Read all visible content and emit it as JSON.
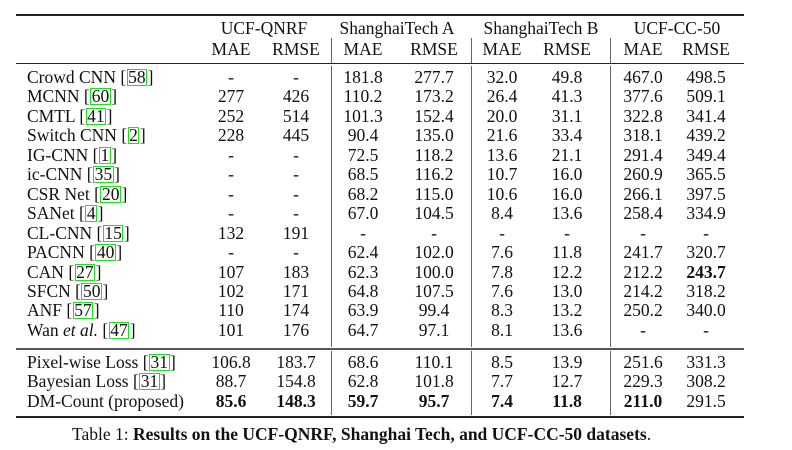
{
  "table": {
    "groups": [
      {
        "name": "UCF-QNRF",
        "cols": [
          "MAE",
          "RMSE"
        ]
      },
      {
        "name": "ShanghaiTech A",
        "cols": [
          "MAE",
          "RMSE"
        ]
      },
      {
        "name": "ShanghaiTech B",
        "cols": [
          "MAE",
          "RMSE"
        ]
      },
      {
        "name": "UCF-CC-50",
        "cols": [
          "MAE",
          "RMSE"
        ]
      }
    ],
    "rows_group1": [
      {
        "method": "Crowd CNN",
        "ref": "58",
        "vals": [
          "-",
          "-",
          "181.8",
          "277.7",
          "32.0",
          "49.8",
          "467.0",
          "498.5"
        ],
        "bold": []
      },
      {
        "method": "MCNN",
        "ref": "60",
        "vals": [
          "277",
          "426",
          "110.2",
          "173.2",
          "26.4",
          "41.3",
          "377.6",
          "509.1"
        ],
        "bold": []
      },
      {
        "method": "CMTL",
        "ref": "41",
        "vals": [
          "252",
          "514",
          "101.3",
          "152.4",
          "20.0",
          "31.1",
          "322.8",
          "341.4"
        ],
        "bold": []
      },
      {
        "method": "Switch CNN ",
        "ref": "2",
        "vals": [
          "228",
          "445",
          "90.4",
          "135.0",
          "21.6",
          "33.4",
          "318.1",
          "439.2"
        ],
        "bold": []
      },
      {
        "method": "IG-CNN",
        "ref": "1",
        "vals": [
          "-",
          "-",
          "72.5",
          "118.2",
          "13.6",
          "21.1",
          "291.4",
          "349.4"
        ],
        "bold": []
      },
      {
        "method": "ic-CNN",
        "ref": "35",
        "vals": [
          "-",
          "-",
          "68.5",
          "116.2",
          "10.7",
          "16.0",
          "260.9",
          "365.5"
        ],
        "bold": []
      },
      {
        "method": "CSR Net",
        "ref": "20",
        "vals": [
          "-",
          "-",
          "68.2",
          "115.0",
          "10.6",
          "16.0",
          "266.1",
          "397.5"
        ],
        "bold": []
      },
      {
        "method": "SANet",
        "ref": "4",
        "vals": [
          "-",
          "-",
          "67.0",
          "104.5",
          "8.4",
          "13.6",
          "258.4",
          "334.9"
        ],
        "bold": []
      },
      {
        "method": "CL-CNN",
        "ref": "15",
        "vals": [
          "132",
          "191",
          "-",
          "-",
          "-",
          "-",
          "-",
          "-"
        ],
        "bold": []
      },
      {
        "method": "PACNN ",
        "ref": "40",
        "vals": [
          "-",
          "-",
          "62.4",
          "102.0",
          "7.6",
          "11.8",
          "241.7",
          "320.7"
        ],
        "bold": []
      },
      {
        "method": "CAN ",
        "ref": "27",
        "vals": [
          "107",
          "183",
          "62.3",
          "100.0",
          "7.8",
          "12.2",
          "212.2",
          "243.7"
        ],
        "bold": [
          7
        ]
      },
      {
        "method": "SFCN ",
        "ref": "50",
        "vals": [
          "102",
          "171",
          "64.8",
          "107.5",
          "7.6",
          "13.0",
          "214.2",
          "318.2"
        ],
        "bold": []
      },
      {
        "method": "ANF",
        "ref": "57",
        "vals": [
          "110",
          "174",
          "63.9",
          "99.4",
          "8.3",
          "13.2",
          "250.2",
          "340.0"
        ],
        "bold": []
      },
      {
        "method": "Wan",
        "method_italic": "et al.",
        "ref": "47",
        "vals": [
          "101",
          "176",
          "64.7",
          "97.1",
          "8.1",
          "13.6",
          "-",
          "-"
        ],
        "bold": []
      }
    ],
    "rows_group2": [
      {
        "method": "Pixel-wise Loss",
        "ref": "31",
        "vals": [
          "106.8",
          "183.7",
          "68.6",
          "110.1",
          "8.5",
          "13.9",
          "251.6",
          "331.3"
        ],
        "bold": []
      },
      {
        "method": "Bayesian Loss",
        "ref": "31",
        "vals": [
          "88.7",
          "154.8",
          "62.8",
          "101.8",
          "7.7",
          "12.7",
          "229.3",
          "308.2"
        ],
        "bold": []
      },
      {
        "method": "DM-Count (proposed)",
        "ref": "",
        "vals": [
          "85.6",
          "148.3",
          "59.7",
          "95.7",
          "7.4",
          "11.8",
          "211.0",
          "291.5"
        ],
        "bold": [
          0,
          1,
          2,
          3,
          4,
          5,
          6
        ]
      }
    ]
  },
  "caption": {
    "label": "Table 1: ",
    "text": "Results on the UCF-QNRF, Shanghai Tech, and UCF-CC-50 datasets",
    "end": "."
  },
  "colors": {
    "citation_box": "#22dd22",
    "text": "#111111"
  }
}
